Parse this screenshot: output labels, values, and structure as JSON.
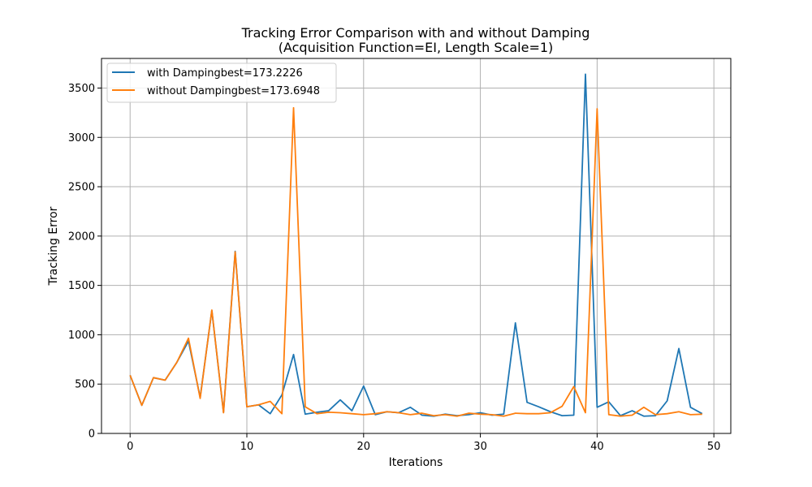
{
  "chart_data": {
    "type": "line",
    "title_line1": "Tracking Error Comparison with and without Damping",
    "title_line2": "(Acquisition Function=EI, Length Scale=1)",
    "xlabel": "Iterations",
    "ylabel": "Tracking Error",
    "xlim": [
      -2.45,
      51.45
    ],
    "ylim": [
      0,
      3800
    ],
    "xticks": [
      0,
      10,
      20,
      30,
      40,
      50
    ],
    "yticks": [
      0,
      500,
      1000,
      1500,
      2000,
      2500,
      3000,
      3500
    ],
    "grid": true,
    "legend_position": "top-left",
    "x": [
      0,
      1,
      2,
      3,
      4,
      5,
      6,
      7,
      8,
      9,
      10,
      11,
      12,
      13,
      14,
      15,
      16,
      17,
      18,
      19,
      20,
      21,
      22,
      23,
      24,
      25,
      26,
      27,
      28,
      29,
      30,
      31,
      32,
      33,
      34,
      35,
      36,
      37,
      38,
      39,
      40,
      41,
      42,
      43,
      44,
      45,
      46,
      47,
      48,
      49
    ],
    "series": [
      {
        "name": "with Dampingbest=173.2226",
        "color": "#1f77b4",
        "values": [
          590,
          285,
          565,
          540,
          720,
          935,
          365,
          1245,
          215,
          1845,
          270,
          290,
          200,
          390,
          800,
          195,
          215,
          230,
          340,
          230,
          480,
          190,
          220,
          210,
          265,
          185,
          175,
          195,
          180,
          190,
          210,
          185,
          195,
          1120,
          315,
          270,
          220,
          180,
          185,
          3640,
          265,
          320,
          180,
          230,
          175,
          180,
          330,
          860,
          265,
          200
        ]
      },
      {
        "name": "without Dampingbest=173.6948",
        "color": "#ff7f0e",
        "values": [
          590,
          285,
          565,
          540,
          720,
          965,
          355,
          1250,
          210,
          1840,
          270,
          290,
          325,
          200,
          3300,
          270,
          200,
          215,
          210,
          200,
          190,
          200,
          220,
          210,
          190,
          205,
          180,
          190,
          175,
          205,
          195,
          190,
          175,
          205,
          200,
          200,
          210,
          275,
          475,
          210,
          3290,
          190,
          175,
          185,
          265,
          190,
          200,
          220,
          190,
          195
        ]
      }
    ]
  }
}
